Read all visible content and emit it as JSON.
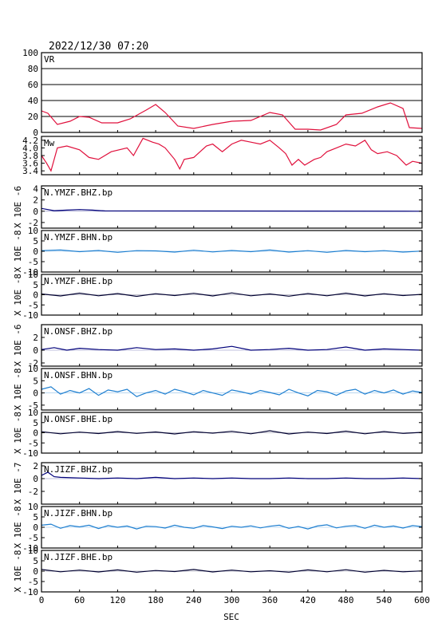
{
  "header": {
    "datetime": "2022/12/30  07:20"
  },
  "colors": {
    "vr_mw": "#e0103c",
    "bhz": "#00007a",
    "bhn": "#1e7fd0",
    "bhe": "#000030"
  },
  "chart_data": {
    "type": "line",
    "x_axis": {
      "label": "SEC",
      "range": [
        0,
        600
      ],
      "ticks": [
        0,
        60,
        120,
        180,
        240,
        300,
        360,
        420,
        480,
        540,
        600
      ],
      "tick_labels": [
        "0",
        "60",
        "120",
        "180",
        "240",
        "300",
        "360",
        "420",
        "480",
        "540",
        "600"
      ]
    },
    "panels": [
      {
        "id": "vr",
        "label": "VR",
        "ylabel": "",
        "ylim": [
          0,
          100
        ],
        "yticks": [
          0,
          20,
          40,
          60,
          80,
          100
        ],
        "ytick_labels": [
          "0",
          "20",
          "40",
          "60",
          "80",
          "100"
        ],
        "grid": true,
        "color_key": "vr_mw",
        "x": [
          0,
          10,
          25,
          45,
          60,
          75,
          95,
          120,
          140,
          165,
          180,
          195,
          215,
          240,
          270,
          300,
          330,
          360,
          380,
          400,
          420,
          440,
          465,
          480,
          505,
          530,
          550,
          570,
          580,
          600
        ],
        "y": [
          27,
          24,
          10,
          14,
          20,
          19,
          12,
          12,
          17,
          28,
          35,
          25,
          8,
          5,
          10,
          14,
          15,
          25,
          22,
          4,
          4,
          3,
          10,
          22,
          24,
          32,
          37,
          30,
          6,
          5
        ]
      },
      {
        "id": "mw",
        "label": "Mw",
        "ylabel": "",
        "ylim": [
          3.3,
          4.3
        ],
        "yticks": [
          3.4,
          3.6,
          3.8,
          4.0,
          4.2
        ],
        "ytick_labels": [
          "3.4",
          "3.6",
          "3.8",
          "4.0",
          "4.2"
        ],
        "grid": false,
        "color_key": "vr_mw",
        "x": [
          0,
          8,
          15,
          25,
          40,
          60,
          75,
          90,
          110,
          135,
          145,
          160,
          175,
          185,
          195,
          210,
          218,
          225,
          240,
          250,
          260,
          270,
          285,
          300,
          315,
          330,
          345,
          360,
          375,
          385,
          395,
          405,
          415,
          430,
          440,
          450,
          465,
          480,
          495,
          510,
          520,
          530,
          545,
          560,
          575,
          585,
          600
        ],
        "y": [
          3.8,
          3.6,
          3.4,
          4.0,
          4.05,
          3.95,
          3.75,
          3.7,
          3.9,
          4.0,
          3.8,
          4.25,
          4.15,
          4.1,
          4.0,
          3.7,
          3.45,
          3.7,
          3.75,
          3.9,
          4.05,
          4.1,
          3.9,
          4.1,
          4.2,
          4.15,
          4.1,
          4.2,
          4.0,
          3.85,
          3.55,
          3.7,
          3.55,
          3.7,
          3.75,
          3.9,
          4.0,
          4.1,
          4.05,
          4.2,
          3.95,
          3.85,
          3.9,
          3.8,
          3.55,
          3.65,
          3.6
        ]
      },
      {
        "id": "ymzf_bhz",
        "label": "N.YMZF.BHZ.bp",
        "ylabel": "X 10E -6",
        "ylim": [
          -3,
          4.5
        ],
        "yticks": [
          -2,
          0,
          2,
          4
        ],
        "ytick_labels": [
          "-2",
          "0",
          "2",
          "4"
        ],
        "grid": false,
        "color_key": "bhz",
        "x": [
          0,
          10,
          20,
          40,
          60,
          80,
          100,
          600
        ],
        "y": [
          0.5,
          0.3,
          0.1,
          0.2,
          0.3,
          0.2,
          0.05,
          0.0
        ]
      },
      {
        "id": "ymzf_bhn",
        "label": "N.YMZF.BHN.bp",
        "ylabel": "X 10E -8",
        "ylim": [
          -10,
          10
        ],
        "yticks": [
          -10,
          -5,
          0,
          5,
          10
        ],
        "ytick_labels": [
          "-10",
          "-5",
          "0",
          "5",
          "10"
        ],
        "grid": false,
        "color_key": "bhn",
        "x": [
          0,
          30,
          60,
          90,
          120,
          150,
          180,
          210,
          240,
          270,
          300,
          330,
          360,
          390,
          420,
          450,
          480,
          510,
          540,
          570,
          600
        ],
        "y": [
          0.3,
          0.6,
          -0.2,
          0.4,
          -0.5,
          0.3,
          0.2,
          -0.4,
          0.5,
          -0.3,
          0.4,
          -0.2,
          0.6,
          -0.4,
          0.3,
          -0.5,
          0.4,
          -0.2,
          0.3,
          -0.4,
          0.1
        ]
      },
      {
        "id": "ymzf_bhe",
        "label": "N.YMZF.BHE.bp",
        "ylabel": "X 10E -8",
        "ylim": [
          -10,
          10
        ],
        "yticks": [
          -10,
          -5,
          0,
          5,
          10
        ],
        "ytick_labels": [
          "-10",
          "-5",
          "0",
          "5",
          "10"
        ],
        "grid": false,
        "color_key": "bhe",
        "x": [
          0,
          30,
          60,
          90,
          120,
          150,
          180,
          210,
          240,
          270,
          300,
          330,
          360,
          390,
          420,
          450,
          480,
          510,
          540,
          570,
          600
        ],
        "y": [
          0.4,
          -0.6,
          0.8,
          -0.5,
          0.6,
          -0.8,
          0.5,
          -0.4,
          0.7,
          -0.6,
          0.9,
          -0.5,
          0.4,
          -0.7,
          0.6,
          -0.5,
          0.8,
          -0.6,
          0.5,
          -0.4,
          0.2
        ]
      },
      {
        "id": "onsf_bhz",
        "label": "N.ONSF.BHZ.bp",
        "ylabel": "X 10E -6",
        "ylim": [
          -2.5,
          4
        ],
        "yticks": [
          -2,
          0,
          2
        ],
        "ytick_labels": [
          "-2",
          "0",
          "2"
        ],
        "grid": false,
        "color_key": "bhz",
        "x": [
          0,
          20,
          40,
          60,
          90,
          120,
          150,
          180,
          210,
          240,
          270,
          300,
          330,
          360,
          390,
          420,
          450,
          480,
          510,
          540,
          570,
          600
        ],
        "y": [
          0.1,
          0.4,
          0.0,
          0.3,
          0.1,
          0.0,
          0.4,
          0.1,
          0.2,
          0.0,
          0.2,
          0.6,
          0.0,
          0.1,
          0.3,
          0.0,
          0.1,
          0.5,
          0.0,
          0.2,
          0.1,
          0.0
        ]
      },
      {
        "id": "onsf_bhn",
        "label": "N.ONSF.BHN.bp",
        "ylabel": "X 10E -8",
        "ylim": [
          -7,
          10
        ],
        "yticks": [
          -5,
          0,
          5,
          10
        ],
        "ytick_labels": [
          "-5",
          "0",
          "5",
          "10"
        ],
        "grid": false,
        "color_key": "bhn",
        "x": [
          0,
          15,
          30,
          45,
          60,
          75,
          90,
          105,
          120,
          135,
          150,
          165,
          180,
          195,
          210,
          225,
          240,
          255,
          270,
          285,
          300,
          315,
          330,
          345,
          360,
          375,
          390,
          405,
          420,
          435,
          450,
          465,
          480,
          495,
          510,
          525,
          540,
          555,
          570,
          585,
          600
        ],
        "y": [
          1.5,
          2.5,
          -0.5,
          1.0,
          0.0,
          1.8,
          -1.0,
          1.2,
          0.5,
          1.5,
          -1.5,
          0.0,
          1.0,
          -0.5,
          1.5,
          0.5,
          -0.8,
          1.0,
          0.0,
          -1.0,
          1.2,
          0.5,
          -0.5,
          1.0,
          0.2,
          -0.8,
          1.5,
          0.0,
          -1.2,
          1.0,
          0.5,
          -1.0,
          0.8,
          1.5,
          -0.5,
          1.0,
          0.0,
          1.2,
          -0.5,
          0.8,
          0.2
        ]
      },
      {
        "id": "onsf_bhe",
        "label": "N.ONSF.BHE.bp",
        "ylabel": "X 10E -8",
        "ylim": [
          -10,
          10
        ],
        "yticks": [
          -10,
          -5,
          0,
          5,
          10
        ],
        "ytick_labels": [
          "-10",
          "-5",
          "0",
          "5",
          "10"
        ],
        "grid": false,
        "color_key": "bhe",
        "x": [
          0,
          30,
          60,
          90,
          120,
          150,
          180,
          210,
          240,
          270,
          300,
          330,
          360,
          390,
          420,
          450,
          480,
          510,
          540,
          570,
          600
        ],
        "y": [
          0.5,
          -0.5,
          0.3,
          -0.4,
          0.6,
          -0.3,
          0.4,
          -0.6,
          0.5,
          -0.2,
          0.7,
          -0.5,
          1.0,
          -0.6,
          0.3,
          -0.4,
          0.8,
          -0.5,
          0.6,
          -0.3,
          0.2
        ]
      },
      {
        "id": "jizf_bhz",
        "label": "N.JIZF.BHZ.bp",
        "ylabel": "X 10E -7",
        "ylim": [
          -4,
          2.5
        ],
        "yticks": [
          -2,
          0,
          2
        ],
        "ytick_labels": [
          "-2",
          "0",
          "2"
        ],
        "grid": false,
        "color_key": "bhz",
        "x": [
          0,
          10,
          20,
          30,
          60,
          90,
          120,
          150,
          180,
          210,
          240,
          270,
          300,
          330,
          360,
          390,
          420,
          450,
          480,
          510,
          540,
          570,
          600
        ],
        "y": [
          0.5,
          1.0,
          0.3,
          0.2,
          0.1,
          0.0,
          0.1,
          0.0,
          0.2,
          0.0,
          0.1,
          0.0,
          0.1,
          0.0,
          0.0,
          0.1,
          0.0,
          0.0,
          0.1,
          0.0,
          0.0,
          0.1,
          0.0
        ]
      },
      {
        "id": "jizf_bhn",
        "label": "N.JIZF.BHN.bp",
        "ylabel": "X 10E -8",
        "ylim": [
          -10,
          10
        ],
        "yticks": [
          -10,
          -5,
          0,
          5,
          10
        ],
        "ytick_labels": [
          "-10",
          "-5",
          "0",
          "5",
          "10"
        ],
        "grid": false,
        "color_key": "bhn",
        "x": [
          0,
          15,
          30,
          45,
          60,
          75,
          90,
          105,
          120,
          135,
          150,
          165,
          180,
          195,
          210,
          225,
          240,
          255,
          270,
          285,
          300,
          315,
          330,
          345,
          360,
          375,
          390,
          405,
          420,
          435,
          450,
          465,
          480,
          495,
          510,
          525,
          540,
          555,
          570,
          585,
          600
        ],
        "y": [
          1.0,
          1.5,
          -0.5,
          0.8,
          0.2,
          1.0,
          -0.6,
          0.8,
          0.0,
          0.6,
          -0.8,
          0.5,
          0.3,
          -0.4,
          1.0,
          0.0,
          -0.5,
          0.8,
          0.2,
          -0.6,
          0.5,
          0.0,
          0.7,
          -0.3,
          0.5,
          1.0,
          -0.5,
          0.4,
          -0.8,
          0.6,
          1.2,
          -0.3,
          0.5,
          0.8,
          -0.5,
          1.0,
          0.0,
          0.6,
          -0.4,
          0.8,
          0.3
        ]
      },
      {
        "id": "jizf_bhe",
        "label": "N.JIZF.BHE.bp",
        "ylabel": "X 10E -8",
        "ylim": [
          -10,
          10
        ],
        "yticks": [
          -10,
          -5,
          0,
          5,
          10
        ],
        "ytick_labels": [
          "-10",
          "-5",
          "0",
          "5",
          "10"
        ],
        "grid": false,
        "color_key": "bhe",
        "x": [
          0,
          30,
          60,
          90,
          120,
          150,
          180,
          210,
          240,
          270,
          300,
          330,
          360,
          390,
          420,
          450,
          480,
          510,
          540,
          570,
          600
        ],
        "y": [
          0.8,
          -0.3,
          0.5,
          -0.4,
          0.6,
          -0.5,
          0.3,
          -0.2,
          0.8,
          -0.4,
          0.5,
          -0.3,
          0.2,
          -0.5,
          0.6,
          -0.3,
          0.7,
          -0.5,
          0.4,
          -0.3,
          0.1
        ]
      }
    ]
  }
}
